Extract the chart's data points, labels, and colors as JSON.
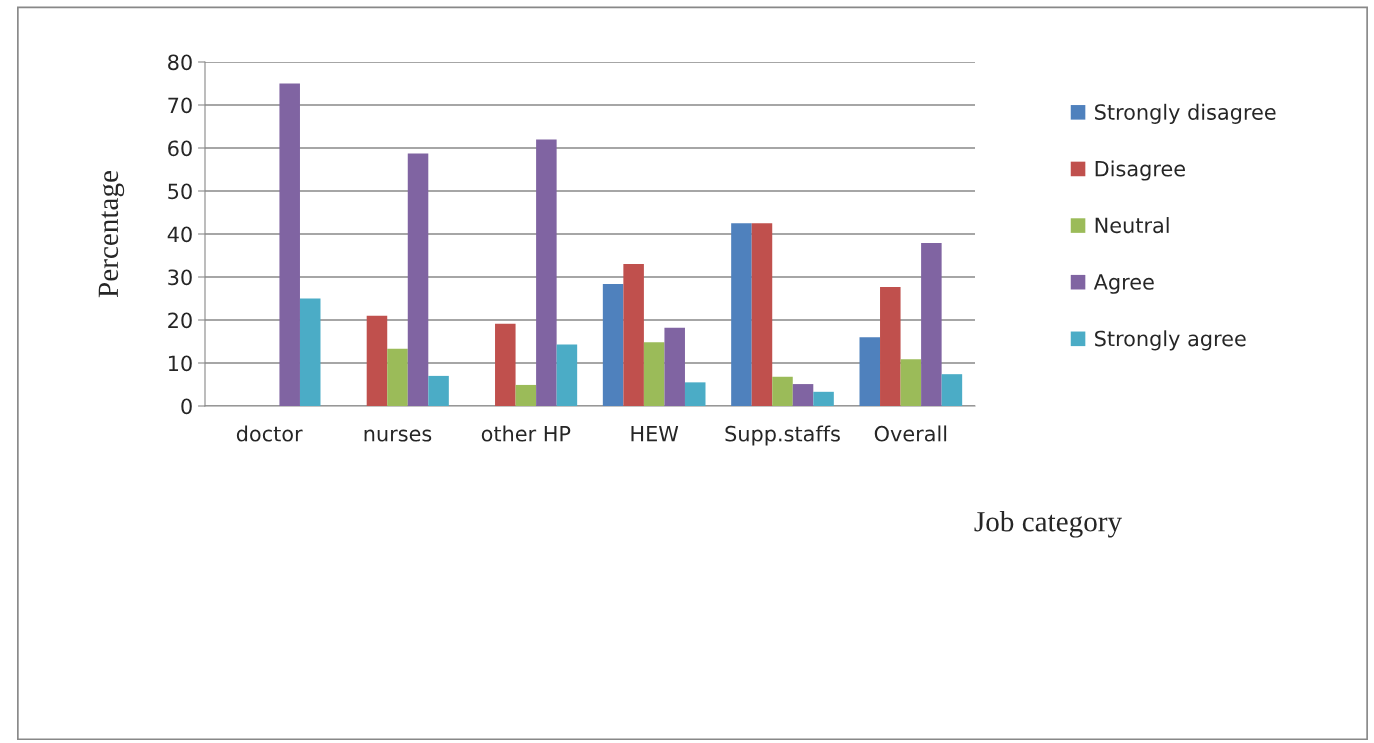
{
  "chart_data": {
    "type": "bar",
    "xlabel": "Job category",
    "ylabel": "Percentage",
    "categories": [
      "doctor",
      "nurses",
      "other HP",
      "HEW",
      "Supp.staffs",
      "Overall"
    ],
    "series": [
      {
        "name": "Strongly disagree",
        "color": "#4f81bd",
        "values": [
          0,
          0,
          0,
          28.4,
          42.5,
          16.0
        ]
      },
      {
        "name": "Disagree",
        "color": "#c0504d",
        "values": [
          0,
          21.0,
          19.1,
          33.0,
          42.5,
          27.7
        ]
      },
      {
        "name": "Neutral",
        "color": "#9bbb59",
        "values": [
          0,
          13.3,
          4.9,
          14.8,
          6.8,
          10.9
        ]
      },
      {
        "name": "Agree",
        "color": "#8064a2",
        "values": [
          75.0,
          58.7,
          62.0,
          18.2,
          5.1,
          37.9
        ]
      },
      {
        "name": "Strongly agree",
        "color": "#4bacc6",
        "values": [
          25.0,
          7.0,
          14.3,
          5.5,
          3.3,
          7.4
        ]
      }
    ],
    "ylim": [
      0,
      80
    ],
    "yticks": [
      0,
      10,
      20,
      30,
      40,
      50,
      60,
      70,
      80
    ],
    "grid": "y",
    "legend": "right"
  }
}
